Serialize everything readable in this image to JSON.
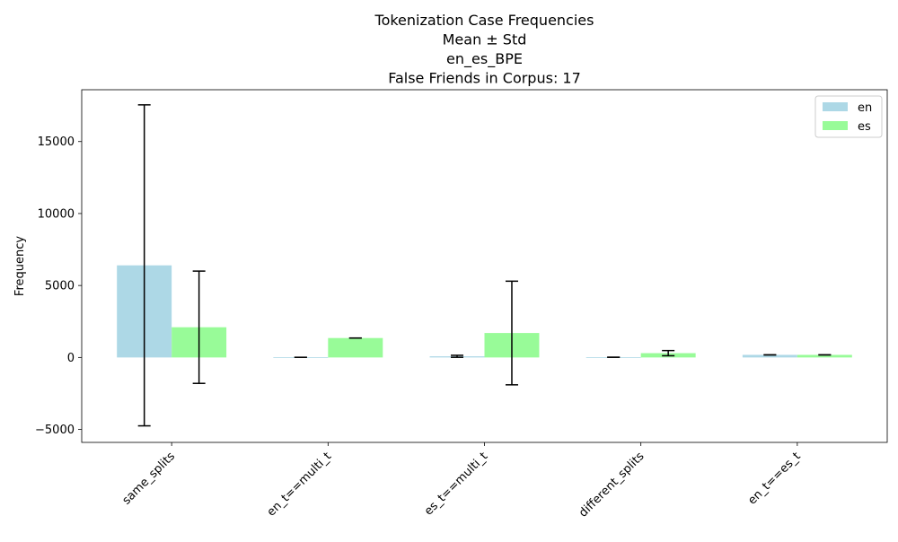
{
  "chart_data": {
    "type": "bar",
    "title_lines": [
      "Tokenization Case Frequencies",
      "Mean ± Std",
      "en_es_BPE",
      "False Friends in Corpus: 17"
    ],
    "xlabel": "",
    "ylabel": "Frequency",
    "ylim": [
      -5900,
      18600
    ],
    "yticks": [
      -5000,
      0,
      5000,
      10000,
      15000
    ],
    "categories": [
      "same_splits",
      "en_t==multi_t",
      "es_t==multi_t",
      "different_splits",
      "en_t==es_t"
    ],
    "series": [
      {
        "name": "en",
        "color": "#add8e6",
        "values": [
          6400,
          10,
          80,
          15,
          180
        ],
        "errors": [
          11150,
          0,
          70,
          0,
          0
        ]
      },
      {
        "name": "es",
        "color": "#98fb98",
        "values": [
          2100,
          1350,
          1700,
          300,
          180
        ],
        "errors": [
          3900,
          0,
          3600,
          180,
          0
        ]
      }
    ],
    "legend_position": "upper right",
    "grid": false
  }
}
